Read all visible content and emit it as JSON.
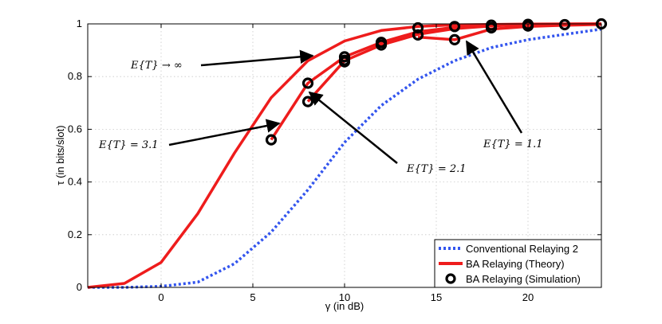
{
  "chart_data": {
    "type": "line",
    "title": "",
    "xlabel": "γ (in dB)",
    "ylabel": "τ (in bits/slot)",
    "xlim": [
      -4,
      24
    ],
    "ylim": [
      0,
      1
    ],
    "x_ticks": [
      0,
      5,
      10,
      15,
      20
    ],
    "y_ticks": [
      0,
      0.2,
      0.4,
      0.6,
      0.8,
      1
    ],
    "x_tick_labels": [
      "0",
      "5",
      "10",
      "15",
      "20"
    ],
    "y_tick_labels": [
      "0",
      "0.2",
      "0.4",
      "0.6",
      "0.8",
      "1"
    ],
    "grid": true,
    "legend_position": "bottom-right",
    "series": [
      {
        "name": "Conventional Relaying 2",
        "style": "dotted",
        "color": "#3355ee",
        "x": [
          -4,
          -2,
          0,
          2,
          4,
          6,
          8,
          10,
          12,
          14,
          16,
          18,
          20,
          22,
          24
        ],
        "y": [
          0.0,
          0.0,
          0.004,
          0.02,
          0.09,
          0.21,
          0.37,
          0.55,
          0.69,
          0.79,
          0.86,
          0.91,
          0.94,
          0.96,
          0.98
        ]
      },
      {
        "name": "BA Relaying (Theory)",
        "label": "E{T} → ∞",
        "style": "solid",
        "color": "#ee1c1c",
        "x": [
          -4,
          -2,
          0,
          2,
          4,
          6,
          8,
          10,
          12,
          14,
          16,
          18,
          20,
          22,
          24
        ],
        "y": [
          0.0,
          0.015,
          0.095,
          0.28,
          0.51,
          0.72,
          0.86,
          0.935,
          0.975,
          0.99,
          0.996,
          0.998,
          0.999,
          1.0,
          1.0
        ]
      },
      {
        "name": "BA Relaying (Theory) E{T}=3.1",
        "label": "E{T} = 3.1",
        "style": "solid",
        "color": "#ee1c1c",
        "x": [
          6,
          8,
          10,
          12,
          14,
          16,
          18,
          20,
          22,
          24
        ],
        "y": [
          0.56,
          0.775,
          0.875,
          0.93,
          0.97,
          0.987,
          0.995,
          0.998,
          0.999,
          1.0
        ]
      },
      {
        "name": "BA Relaying (Theory) E{T}=2.1",
        "label": "E{T} = 2.1",
        "style": "solid",
        "color": "#ee1c1c",
        "x": [
          8,
          10,
          12,
          14,
          16,
          18,
          20,
          22,
          24
        ],
        "y": [
          0.705,
          0.86,
          0.92,
          0.96,
          0.982,
          0.992,
          0.997,
          0.999,
          1.0
        ]
      },
      {
        "name": "BA Relaying (Theory) E{T}=1.1",
        "label": "E{T} = 1.1",
        "style": "solid",
        "color": "#ee1c1c",
        "x": [
          14,
          16,
          18,
          20,
          22,
          24
        ],
        "y": [
          0.95,
          0.94,
          0.98,
          0.99,
          0.995,
          0.998
        ]
      },
      {
        "name": "BA Relaying (Simulation)",
        "style": "markers",
        "color": "#000000",
        "x": [
          6,
          8,
          8,
          10,
          10,
          10,
          12,
          12,
          14,
          14,
          16,
          16,
          18,
          18,
          20,
          20,
          22,
          24
        ],
        "y": [
          0.56,
          0.775,
          0.705,
          0.875,
          0.862,
          0.856,
          0.93,
          0.92,
          0.985,
          0.958,
          0.99,
          0.94,
          0.995,
          0.985,
          0.998,
          0.992,
          0.997,
          1.0
        ]
      }
    ],
    "legend": [
      {
        "label": "Conventional Relaying 2",
        "style": "dotted",
        "color": "#3355ee"
      },
      {
        "label": "BA Relaying (Theory)",
        "style": "solid",
        "color": "#ee1c1c"
      },
      {
        "label": "BA Relaying (Simulation)",
        "style": "markers",
        "color": "#000000"
      }
    ],
    "annotations": [
      {
        "text": "E{T} → ∞",
        "target": [
          8,
          0.88
        ]
      },
      {
        "text": "E{T} = 3.1",
        "target": [
          6.5,
          0.62
        ]
      },
      {
        "text": "E{T} = 2.1",
        "target": [
          8.5,
          0.74
        ]
      },
      {
        "text": "E{T} = 1.1",
        "target": [
          16.8,
          0.94
        ]
      }
    ]
  }
}
